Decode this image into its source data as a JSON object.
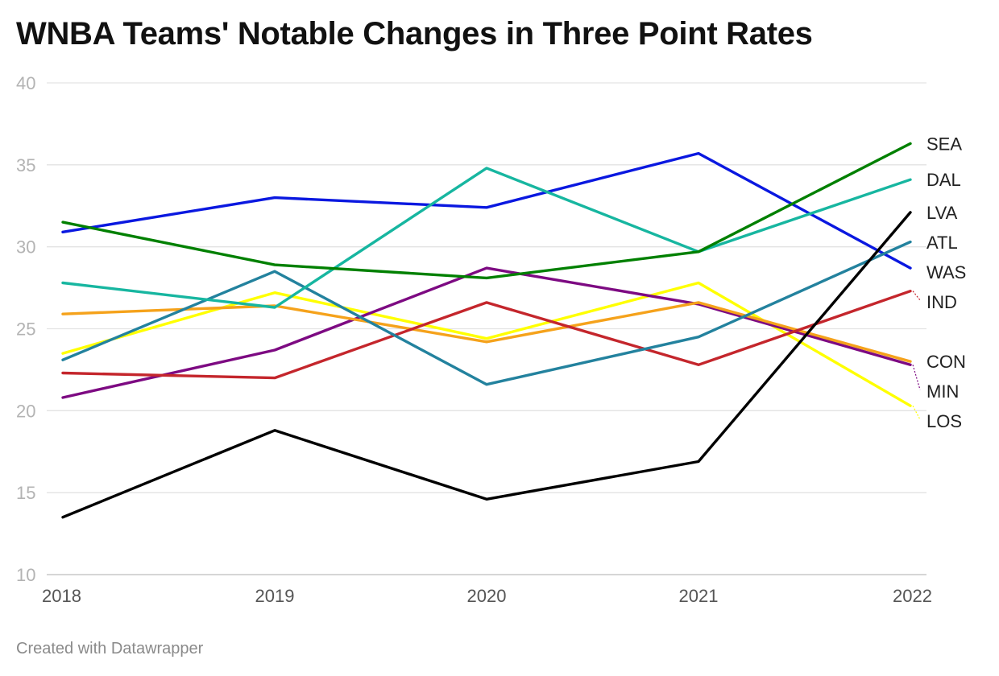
{
  "title": "WNBA Teams' Notable Changes in Three Point Rates",
  "footer": "Created with Datawrapper",
  "chart_data": {
    "type": "line",
    "title": "WNBA Teams' Notable Changes in Three Point Rates",
    "x": [
      "2018",
      "2019",
      "2020",
      "2021",
      "2022"
    ],
    "xlabel": "",
    "ylabel": "",
    "ylim": [
      10,
      40
    ],
    "yticks": [
      10,
      15,
      20,
      25,
      30,
      35,
      40
    ],
    "grid": true,
    "series": [
      {
        "name": "SEA",
        "color": "#008000",
        "values": [
          31.5,
          28.9,
          28.1,
          29.7,
          36.3
        ]
      },
      {
        "name": "DAL",
        "color": "#17b6a0",
        "values": [
          27.8,
          26.3,
          34.8,
          29.7,
          34.1
        ]
      },
      {
        "name": "LVA",
        "color": "#000000",
        "values": [
          13.5,
          18.8,
          14.6,
          16.9,
          32.1
        ]
      },
      {
        "name": "ATL",
        "color": "#23829e",
        "values": [
          23.1,
          28.5,
          21.6,
          24.5,
          30.3
        ]
      },
      {
        "name": "WAS",
        "color": "#0a18e0",
        "values": [
          30.9,
          33.0,
          32.4,
          35.7,
          28.7
        ]
      },
      {
        "name": "IND",
        "color": "#c4262c",
        "values": [
          22.3,
          22.0,
          26.6,
          22.8,
          27.3
        ]
      },
      {
        "name": "CON",
        "color": "#f5a21b",
        "values": [
          25.9,
          26.4,
          24.2,
          26.6,
          23.0
        ]
      },
      {
        "name": "MIN",
        "color": "#7d0a82",
        "values": [
          20.8,
          23.7,
          28.7,
          26.5,
          22.8
        ]
      },
      {
        "name": "LOS",
        "color": "#ffff00",
        "values": [
          23.5,
          27.2,
          24.4,
          27.8,
          20.3
        ]
      }
    ]
  }
}
